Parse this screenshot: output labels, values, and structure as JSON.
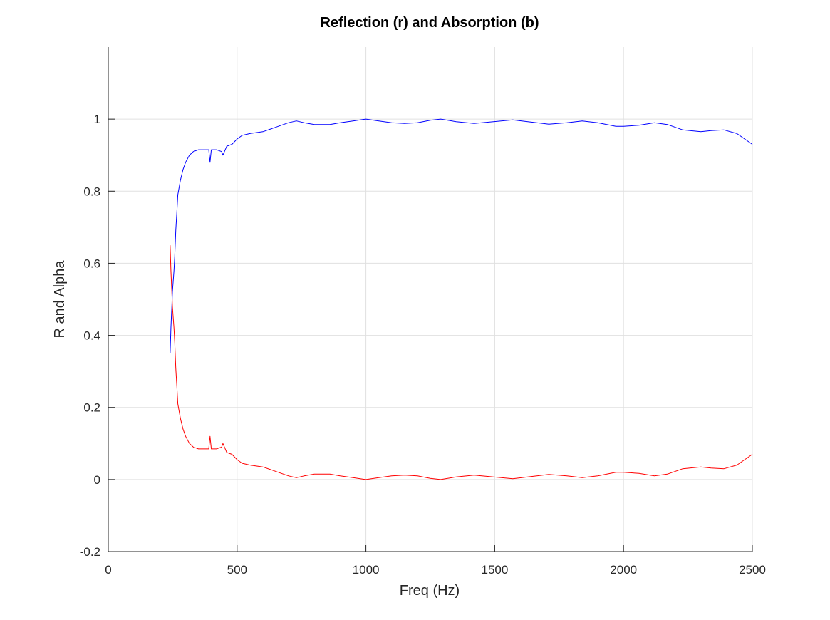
{
  "chart_data": {
    "type": "line",
    "title": "Reflection (r) and Absorption (b)",
    "xlabel": "Freq (Hz)",
    "ylabel": "R and Alpha",
    "xlim": [
      0,
      2500
    ],
    "ylim": [
      -0.2,
      1.2
    ],
    "xticks": [
      0,
      500,
      1000,
      1500,
      2000,
      2500
    ],
    "xtick_labels": [
      "0",
      "500",
      "1000",
      "1500",
      "2000",
      "2500"
    ],
    "yticks": [
      -0.2,
      0,
      0.2,
      0.4,
      0.6,
      0.8,
      1
    ],
    "ytick_labels": [
      "-0.2",
      "0",
      "0.2",
      "0.4",
      "0.6",
      "0.8",
      "1"
    ],
    "grid": true,
    "series": [
      {
        "color": "#0000ff",
        "x": [
          240,
          243,
          246,
          249,
          252,
          255,
          258,
          262,
          266,
          270,
          275,
          280,
          290,
          300,
          315,
          330,
          350,
          370,
          390,
          395,
          400,
          420,
          440,
          445,
          460,
          480,
          500,
          520,
          550,
          600,
          640,
          680,
          700,
          730,
          760,
          800,
          860,
          900,
          950,
          1000,
          1050,
          1100,
          1150,
          1200,
          1250,
          1290,
          1350,
          1420,
          1480,
          1570,
          1640,
          1710,
          1780,
          1840,
          1900,
          1970,
          2000,
          2060,
          2120,
          2170,
          2230,
          2300,
          2340,
          2390,
          2440,
          2500
        ],
        "y": [
          0.35,
          0.42,
          0.47,
          0.52,
          0.55,
          0.58,
          0.62,
          0.69,
          0.74,
          0.79,
          0.81,
          0.83,
          0.86,
          0.88,
          0.9,
          0.91,
          0.915,
          0.915,
          0.915,
          0.88,
          0.915,
          0.915,
          0.91,
          0.9,
          0.925,
          0.93,
          0.945,
          0.955,
          0.96,
          0.965,
          0.975,
          0.985,
          0.99,
          0.995,
          0.99,
          0.985,
          0.985,
          0.99,
          0.995,
          1.0,
          0.995,
          0.99,
          0.988,
          0.99,
          0.997,
          1.0,
          0.993,
          0.988,
          0.992,
          0.998,
          0.992,
          0.986,
          0.99,
          0.995,
          0.99,
          0.98,
          0.98,
          0.983,
          0.99,
          0.985,
          0.97,
          0.965,
          0.968,
          0.97,
          0.96,
          0.93
        ]
      },
      {
        "color": "#ff0000",
        "x": [
          240,
          243,
          246,
          249,
          252,
          255,
          258,
          262,
          266,
          270,
          275,
          280,
          290,
          300,
          315,
          330,
          350,
          370,
          390,
          395,
          400,
          420,
          440,
          445,
          460,
          480,
          500,
          520,
          550,
          600,
          640,
          680,
          700,
          730,
          760,
          800,
          860,
          900,
          950,
          1000,
          1050,
          1100,
          1150,
          1200,
          1250,
          1290,
          1350,
          1420,
          1480,
          1570,
          1640,
          1710,
          1780,
          1840,
          1900,
          1970,
          2000,
          2060,
          2120,
          2170,
          2230,
          2300,
          2340,
          2390,
          2440,
          2500
        ],
        "y": [
          0.65,
          0.58,
          0.53,
          0.48,
          0.45,
          0.42,
          0.38,
          0.31,
          0.26,
          0.21,
          0.19,
          0.17,
          0.14,
          0.12,
          0.1,
          0.09,
          0.085,
          0.085,
          0.085,
          0.12,
          0.085,
          0.085,
          0.09,
          0.1,
          0.075,
          0.07,
          0.055,
          0.045,
          0.04,
          0.035,
          0.025,
          0.015,
          0.01,
          0.005,
          0.01,
          0.015,
          0.015,
          0.01,
          0.005,
          0.0,
          0.005,
          0.01,
          0.012,
          0.01,
          0.003,
          0.0,
          0.007,
          0.012,
          0.008,
          0.002,
          0.008,
          0.014,
          0.01,
          0.005,
          0.01,
          0.02,
          0.02,
          0.017,
          0.01,
          0.015,
          0.03,
          0.035,
          0.032,
          0.03,
          0.04,
          0.07
        ]
      }
    ]
  }
}
